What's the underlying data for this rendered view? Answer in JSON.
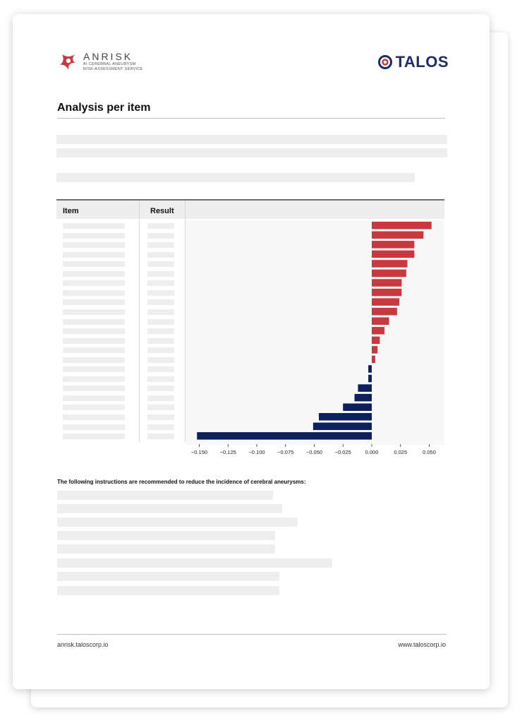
{
  "header": {
    "anrisk_name": "ANRISK",
    "anrisk_tagline_1": "AI CEREBRAL ANEURYSM",
    "anrisk_tagline_2": "RISK-ASSESSMENT SERVICE",
    "anrisk_logo_icon": "anrisk-logo-icon",
    "talos_name": "TALOS",
    "talos_logo_icon": "talos-logo-icon",
    "brand_red": "#c8383e",
    "brand_navy": "#1d2d6b"
  },
  "section": {
    "title": "Analysis per item"
  },
  "table": {
    "col_item": "Item",
    "col_result": "Result"
  },
  "chart_data": {
    "type": "bar",
    "orientation": "horizontal",
    "values": [
      0.052,
      0.045,
      0.037,
      0.037,
      0.031,
      0.03,
      0.026,
      0.026,
      0.024,
      0.022,
      0.015,
      0.011,
      0.007,
      0.005,
      0.003,
      -0.003,
      -0.003,
      -0.012,
      -0.015,
      -0.025,
      -0.046,
      -0.051,
      -0.152
    ],
    "xlim": [
      -0.16,
      0.065
    ],
    "xticks": [
      -0.15,
      -0.125,
      -0.1,
      -0.075,
      -0.05,
      -0.025,
      0.0,
      0.025,
      0.05
    ],
    "xtick_labels": [
      "−0.150",
      "−0.125",
      "−0.100",
      "−0.075",
      "−0.050",
      "−0.025",
      "0.000",
      "0.025",
      "0.050"
    ],
    "positive_color": "#c8383e",
    "negative_color": "#0d1f5c",
    "grid": false
  },
  "recommendations": {
    "heading": "The following instructions are recommended to reduce the incidence of cerebral aneurysms:"
  },
  "footer": {
    "left": "anrisk.taloscorp.io",
    "right": "www.taloscorp.io"
  }
}
